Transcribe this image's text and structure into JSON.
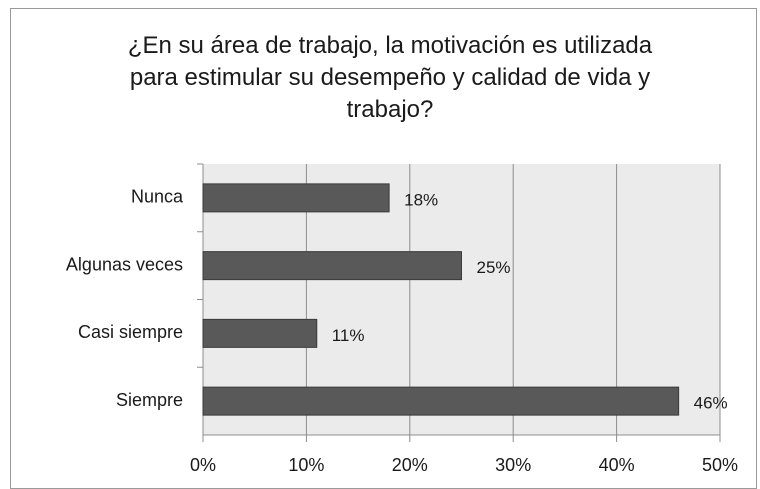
{
  "chart_data": {
    "type": "bar",
    "orientation": "horizontal",
    "title": "¿En su área de trabajo, la motivación es utilizada para estimular su desempeño y calidad de vida y trabajo?",
    "categories": [
      "Nunca",
      "Algunas veces",
      "Casi siempre",
      "Siempre"
    ],
    "values": [
      18,
      25,
      11,
      46
    ],
    "value_labels": [
      "18%",
      "25%",
      "11%",
      "46%"
    ],
    "color": "#595959",
    "xlim": [
      0,
      50
    ],
    "xticks": [
      {
        "value": 0,
        "label": "0%"
      },
      {
        "value": 10,
        "label": "10%"
      },
      {
        "value": 20,
        "label": "20%"
      },
      {
        "value": 30,
        "label": "30%"
      },
      {
        "value": 40,
        "label": "40%"
      },
      {
        "value": 50,
        "label": "50%"
      }
    ],
    "grid": true
  }
}
